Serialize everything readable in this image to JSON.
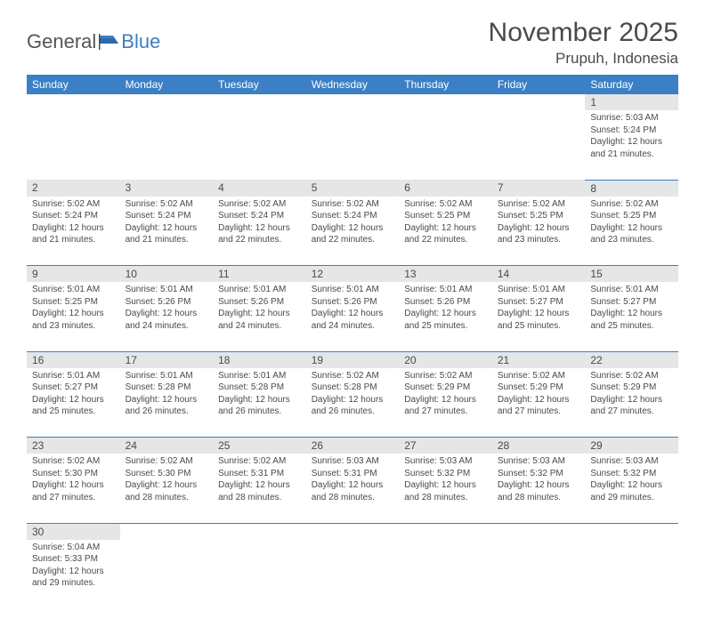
{
  "header": {
    "logo_general": "General",
    "logo_blue": "Blue",
    "title": "November 2025",
    "location": "Prupuh, Indonesia"
  },
  "colors": {
    "header_bg": "#3b7fc4",
    "header_text": "#ffffff",
    "daynum_bg": "#e6e6e6",
    "text": "#4a4a4a",
    "rule": "#3b7fc4"
  },
  "weekdays": [
    "Sunday",
    "Monday",
    "Tuesday",
    "Wednesday",
    "Thursday",
    "Friday",
    "Saturday"
  ],
  "weeks": [
    [
      null,
      null,
      null,
      null,
      null,
      null,
      {
        "n": "1",
        "sr": "5:03 AM",
        "ss": "5:24 PM",
        "dl": "12 hours and 21 minutes."
      }
    ],
    [
      {
        "n": "2",
        "sr": "5:02 AM",
        "ss": "5:24 PM",
        "dl": "12 hours and 21 minutes."
      },
      {
        "n": "3",
        "sr": "5:02 AM",
        "ss": "5:24 PM",
        "dl": "12 hours and 21 minutes."
      },
      {
        "n": "4",
        "sr": "5:02 AM",
        "ss": "5:24 PM",
        "dl": "12 hours and 22 minutes."
      },
      {
        "n": "5",
        "sr": "5:02 AM",
        "ss": "5:24 PM",
        "dl": "12 hours and 22 minutes."
      },
      {
        "n": "6",
        "sr": "5:02 AM",
        "ss": "5:25 PM",
        "dl": "12 hours and 22 minutes."
      },
      {
        "n": "7",
        "sr": "5:02 AM",
        "ss": "5:25 PM",
        "dl": "12 hours and 23 minutes."
      },
      {
        "n": "8",
        "sr": "5:02 AM",
        "ss": "5:25 PM",
        "dl": "12 hours and 23 minutes."
      }
    ],
    [
      {
        "n": "9",
        "sr": "5:01 AM",
        "ss": "5:25 PM",
        "dl": "12 hours and 23 minutes."
      },
      {
        "n": "10",
        "sr": "5:01 AM",
        "ss": "5:26 PM",
        "dl": "12 hours and 24 minutes."
      },
      {
        "n": "11",
        "sr": "5:01 AM",
        "ss": "5:26 PM",
        "dl": "12 hours and 24 minutes."
      },
      {
        "n": "12",
        "sr": "5:01 AM",
        "ss": "5:26 PM",
        "dl": "12 hours and 24 minutes."
      },
      {
        "n": "13",
        "sr": "5:01 AM",
        "ss": "5:26 PM",
        "dl": "12 hours and 25 minutes."
      },
      {
        "n": "14",
        "sr": "5:01 AM",
        "ss": "5:27 PM",
        "dl": "12 hours and 25 minutes."
      },
      {
        "n": "15",
        "sr": "5:01 AM",
        "ss": "5:27 PM",
        "dl": "12 hours and 25 minutes."
      }
    ],
    [
      {
        "n": "16",
        "sr": "5:01 AM",
        "ss": "5:27 PM",
        "dl": "12 hours and 25 minutes."
      },
      {
        "n": "17",
        "sr": "5:01 AM",
        "ss": "5:28 PM",
        "dl": "12 hours and 26 minutes."
      },
      {
        "n": "18",
        "sr": "5:01 AM",
        "ss": "5:28 PM",
        "dl": "12 hours and 26 minutes."
      },
      {
        "n": "19",
        "sr": "5:02 AM",
        "ss": "5:28 PM",
        "dl": "12 hours and 26 minutes."
      },
      {
        "n": "20",
        "sr": "5:02 AM",
        "ss": "5:29 PM",
        "dl": "12 hours and 27 minutes."
      },
      {
        "n": "21",
        "sr": "5:02 AM",
        "ss": "5:29 PM",
        "dl": "12 hours and 27 minutes."
      },
      {
        "n": "22",
        "sr": "5:02 AM",
        "ss": "5:29 PM",
        "dl": "12 hours and 27 minutes."
      }
    ],
    [
      {
        "n": "23",
        "sr": "5:02 AM",
        "ss": "5:30 PM",
        "dl": "12 hours and 27 minutes."
      },
      {
        "n": "24",
        "sr": "5:02 AM",
        "ss": "5:30 PM",
        "dl": "12 hours and 28 minutes."
      },
      {
        "n": "25",
        "sr": "5:02 AM",
        "ss": "5:31 PM",
        "dl": "12 hours and 28 minutes."
      },
      {
        "n": "26",
        "sr": "5:03 AM",
        "ss": "5:31 PM",
        "dl": "12 hours and 28 minutes."
      },
      {
        "n": "27",
        "sr": "5:03 AM",
        "ss": "5:32 PM",
        "dl": "12 hours and 28 minutes."
      },
      {
        "n": "28",
        "sr": "5:03 AM",
        "ss": "5:32 PM",
        "dl": "12 hours and 28 minutes."
      },
      {
        "n": "29",
        "sr": "5:03 AM",
        "ss": "5:32 PM",
        "dl": "12 hours and 29 minutes."
      }
    ],
    [
      {
        "n": "30",
        "sr": "5:04 AM",
        "ss": "5:33 PM",
        "dl": "12 hours and 29 minutes."
      },
      null,
      null,
      null,
      null,
      null,
      null
    ]
  ],
  "labels": {
    "sunrise": "Sunrise: ",
    "sunset": "Sunset: ",
    "daylight": "Daylight: "
  }
}
